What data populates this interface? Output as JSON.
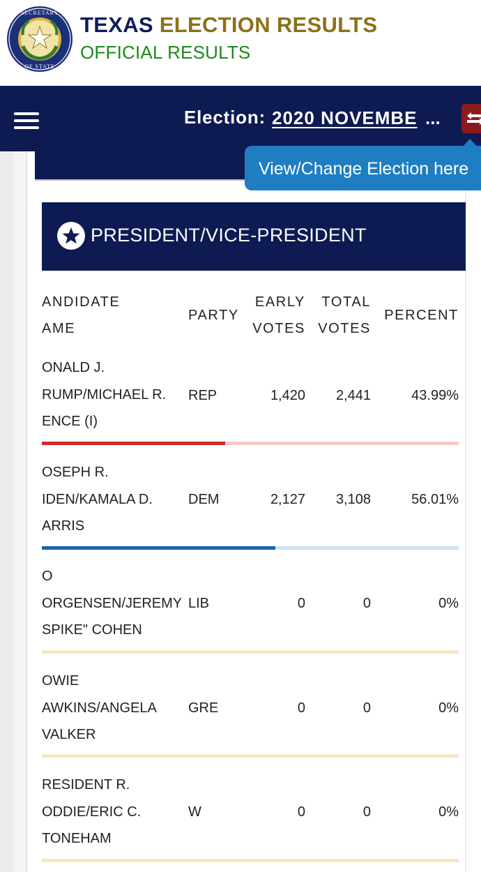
{
  "header": {
    "title_part1": "TEXAS",
    "title_part2": "ELECTION RESULTS",
    "subtitle": "OFFICIAL RESULTS",
    "seal_text": "TEXAS SECRETARY OF STATE"
  },
  "nav": {
    "election_label": "Election:",
    "election_name": "2020 NOVEMBE",
    "election_ellipsis": "...",
    "tooltip": "View/Change Election here"
  },
  "race": {
    "title": "PRESIDENT/VICE-PRESIDENT",
    "columns": {
      "candidate_line1": "ANDIDATE",
      "candidate_line2": "AME",
      "party": "PARTY",
      "early_line1": "EARLY",
      "early_line2": "VOTES",
      "total_line1": "TOTAL",
      "total_line2": "VOTES",
      "percent": "PERCENT"
    },
    "rows": [
      {
        "name_lines": [
          "ONALD J.",
          "RUMP/MICHAEL R.",
          "ENCE (I)"
        ],
        "party": "REP",
        "early": "1,420",
        "total": "2,441",
        "percent": "43.99%",
        "share": 0.4399,
        "bar_color": "#d42a2a",
        "bar_track": "#f6caca"
      },
      {
        "name_lines": [
          "OSEPH R.",
          "IDEN/KAMALA D.",
          "ARRIS"
        ],
        "party": "DEM",
        "early": "2,127",
        "total": "3,108",
        "percent": "56.01%",
        "share": 0.5601,
        "bar_color": "#1b65ab",
        "bar_track": "#cfe2f2"
      },
      {
        "name_lines": [
          "O",
          "ORGENSEN/JEREMY",
          "SPIKE\" COHEN"
        ],
        "party": "LIB",
        "early": "0",
        "total": "0",
        "percent": "0%",
        "share": 0,
        "bar_color": "#e9d39a",
        "bar_track": "#f5e8c3"
      },
      {
        "name_lines": [
          "OWIE",
          "AWKINS/ANGELA",
          "VALKER"
        ],
        "party": "GRE",
        "early": "0",
        "total": "0",
        "percent": "0%",
        "share": 0,
        "bar_color": "#e9d39a",
        "bar_track": "#f5e8c3"
      },
      {
        "name_lines": [
          "RESIDENT R.",
          "ODDIE/ERIC C.",
          "TONEHAM"
        ],
        "party": "W",
        "early": "0",
        "total": "0",
        "percent": "0%",
        "share": 0,
        "bar_color": "#e9d39a",
        "bar_track": "#f5e8c3"
      }
    ]
  },
  "colors": {
    "navy": "#0e1a52",
    "gold": "#8c7118",
    "green": "#1b8a1b",
    "tooltip_blue": "#1f7ec2",
    "change_red": "#8c1c1c"
  }
}
